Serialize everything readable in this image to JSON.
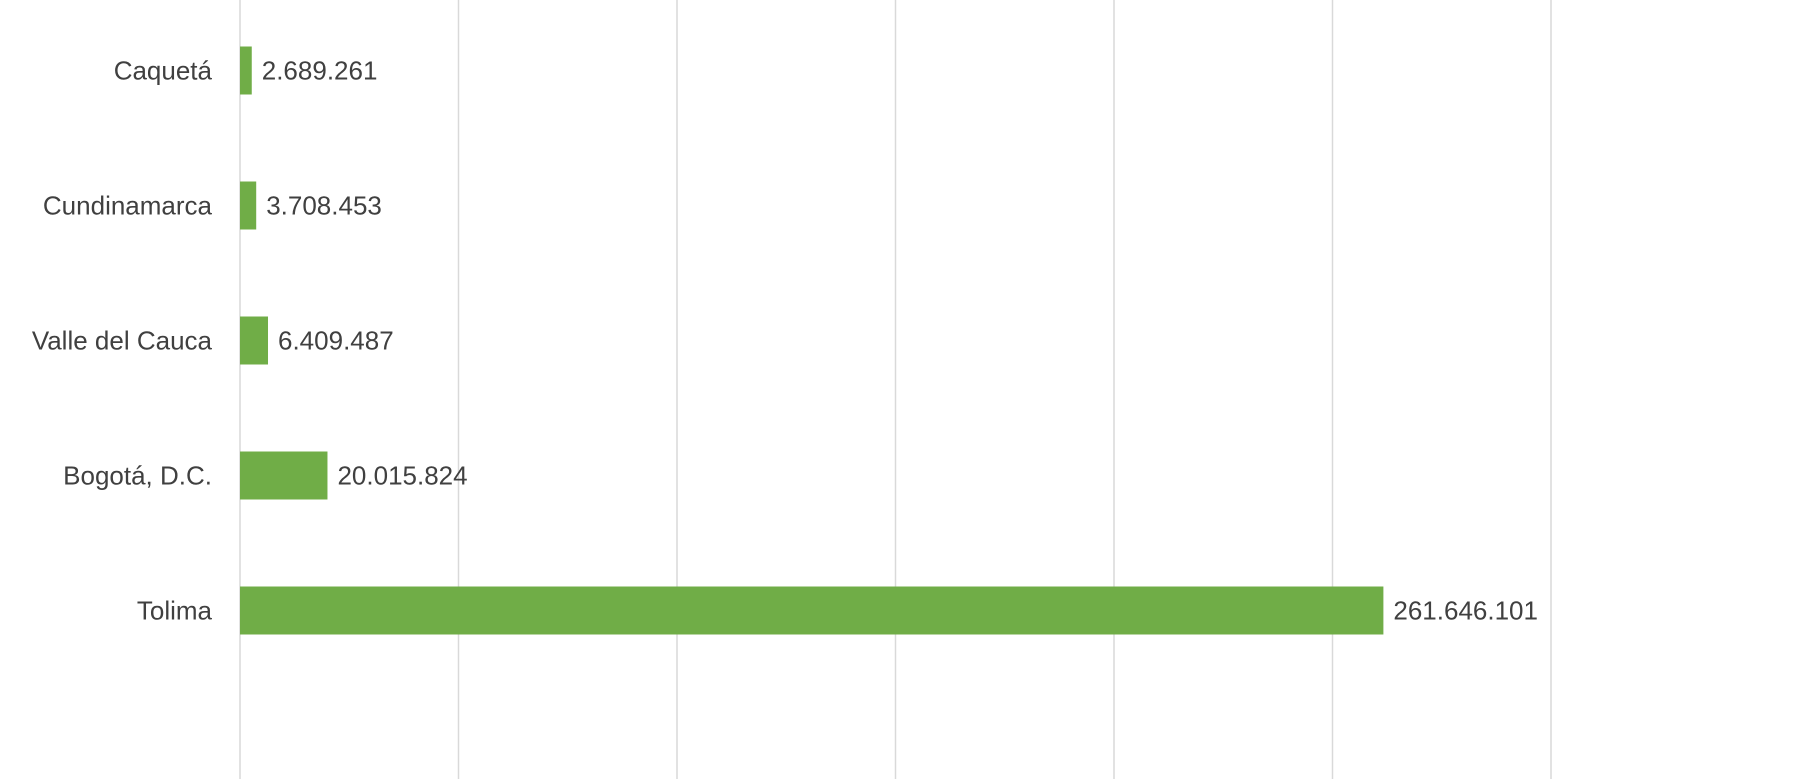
{
  "chart_data": {
    "type": "bar",
    "orientation": "horizontal",
    "categories": [
      "Caquetá",
      "Cundinamarca",
      "Valle del Cauca",
      "Bogotá, D.C.",
      "Tolima"
    ],
    "values": [
      2689261,
      3708453,
      6409487,
      20015824,
      261646101
    ],
    "value_labels": [
      "2.689.261",
      "3.708.453",
      "6.409.487",
      "20.015.824",
      "261.646.101"
    ],
    "color": "#70ad47",
    "xlim": [
      0,
      300000000
    ],
    "xticks": [
      0,
      50000000,
      100000000,
      150000000,
      200000000,
      250000000,
      300000000
    ],
    "grid": true
  }
}
